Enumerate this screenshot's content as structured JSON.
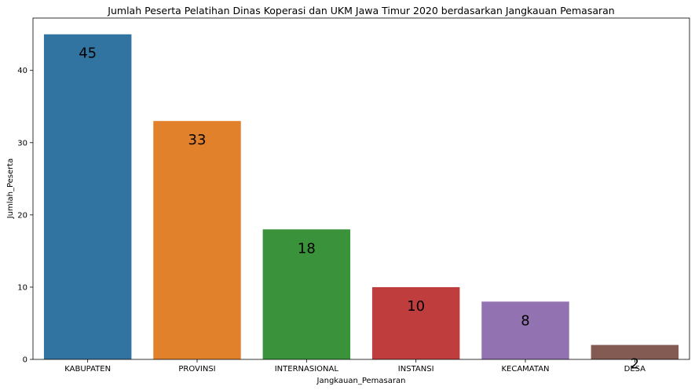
{
  "chart_data": {
    "type": "bar",
    "title": "Jumlah Peserta Pelatihan Dinas Koperasi dan UKM Jawa Timur 2020 berdasarkan Jangkauan Pemasaran",
    "xlabel": "Jangkauan_Pemasaran",
    "ylabel": "Jumlah_Peserta",
    "categories": [
      "KABUPATEN",
      "PROVINSI",
      "INTERNASIONAL",
      "INSTANSI",
      "KECAMATAN",
      "DESA"
    ],
    "values": [
      45,
      33,
      18,
      10,
      8,
      2
    ],
    "colors": [
      "#3274a1",
      "#e1812c",
      "#3a923a",
      "#c03d3e",
      "#9372b2",
      "#845b53"
    ],
    "ylim": [
      0,
      47.25
    ],
    "yticks": [
      0,
      10,
      20,
      30,
      40
    ],
    "grid": false,
    "legend": "none"
  }
}
